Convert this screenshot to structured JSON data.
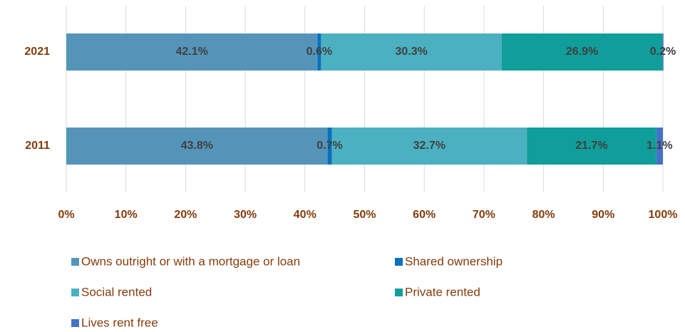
{
  "chart_data": {
    "type": "stacked-bar-horizontal",
    "categories": [
      "2021",
      "2011"
    ],
    "series": [
      {
        "name": "Owns outright or with a mortgage or loan",
        "color": "#5594b9",
        "values": [
          42.1,
          43.8
        ],
        "value_labels": [
          "42.1%",
          "43.8%"
        ]
      },
      {
        "name": "Shared ownership",
        "color": "#0a70c0",
        "values": [
          0.6,
          0.7
        ],
        "value_labels": [
          "0.6%",
          "0.7%"
        ]
      },
      {
        "name": "Social rented",
        "color": "#4bb0c0",
        "values": [
          30.3,
          32.7
        ],
        "value_labels": [
          "30.3%",
          "32.7%"
        ]
      },
      {
        "name": "Private rented",
        "color": "#0f9e9a",
        "values": [
          26.9,
          21.7
        ],
        "value_labels": [
          "26.9%",
          "21.7%"
        ]
      },
      {
        "name": "Lives rent free",
        "color": "#4472c4",
        "values": [
          0.2,
          1.1
        ],
        "value_labels": [
          "0.2%",
          "1.1%"
        ]
      }
    ],
    "xlim": [
      0,
      100
    ],
    "xticks": [
      {
        "value": 0,
        "label": "0%"
      },
      {
        "value": 10,
        "label": "10%"
      },
      {
        "value": 20,
        "label": "20%"
      },
      {
        "value": 30,
        "label": "30%"
      },
      {
        "value": 40,
        "label": "40%"
      },
      {
        "value": 50,
        "label": "50%"
      },
      {
        "value": 60,
        "label": "60%"
      },
      {
        "value": 70,
        "label": "70%"
      },
      {
        "value": 80,
        "label": "80%"
      },
      {
        "value": 90,
        "label": "90%"
      },
      {
        "value": 100,
        "label": "100%"
      }
    ],
    "grid": true,
    "legend": "bottom"
  }
}
